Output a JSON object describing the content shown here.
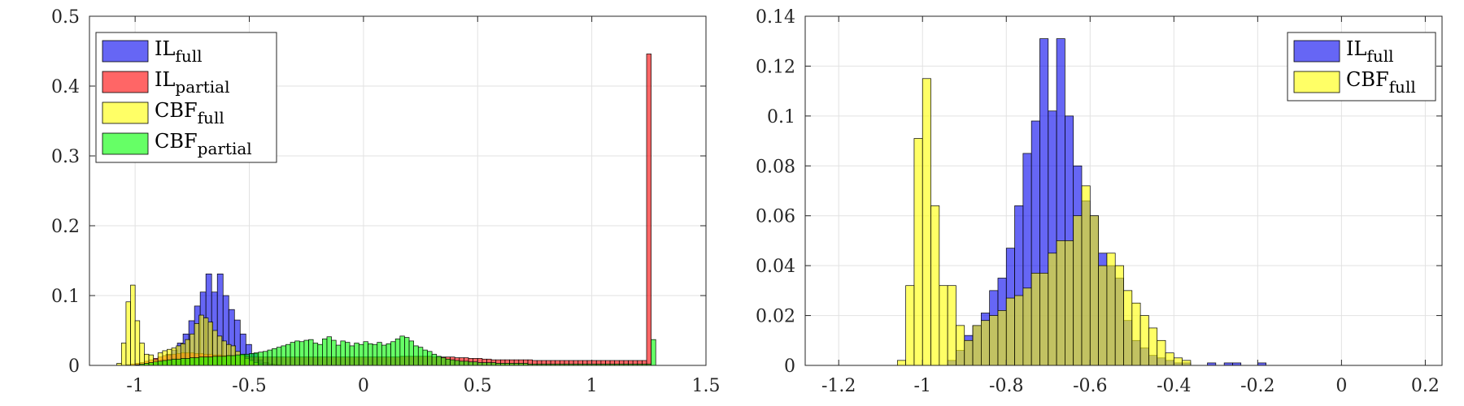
{
  "chart_data": [
    {
      "type": "histogram",
      "xlim": [
        -1.2,
        1.5
      ],
      "ylim": [
        0,
        0.5
      ],
      "xticks": [
        -1,
        -0.5,
        0,
        0.5,
        1,
        1.5
      ],
      "yticks": [
        0,
        0.1,
        0.2,
        0.3,
        0.4,
        0.5
      ],
      "xtick_labels": [
        "-1",
        "-0.5",
        "0",
        "0.5",
        "1",
        "1.5"
      ],
      "ytick_labels": [
        "0",
        "0.1",
        "0.2",
        "0.3",
        "0.4",
        "0.5"
      ],
      "grid": true,
      "legend_position": "top-left",
      "series": [
        {
          "name": "IL",
          "subscript": "full",
          "color": "#0000ee",
          "x0": -1.04,
          "bin_width": 0.025,
          "values": [
            0,
            0,
            0,
            0,
            0.001,
            0.003,
            0.008,
            0.016,
            0.022,
            0.032,
            0.045,
            0.064,
            0.085,
            0.105,
            0.131,
            0.105,
            0.131,
            0.1,
            0.08,
            0.065,
            0.045,
            0.03,
            0.017,
            0.008,
            0.004,
            0.002,
            0.001
          ]
        },
        {
          "name": "IL",
          "subscript": "partial",
          "color": "#ff0000",
          "x0": -1.04,
          "bin_width": 0.02,
          "values": [
            0.001,
            0.002,
            0.003,
            0.004,
            0.006,
            0.008,
            0.01,
            0.012,
            0.014,
            0.015,
            0.016,
            0.017,
            0.018,
            0.018,
            0.018,
            0.017,
            0.017,
            0.016,
            0.016,
            0.015,
            0.015,
            0.014,
            0.014,
            0.014,
            0.013,
            0.013,
            0.013,
            0.012,
            0.012,
            0.012,
            0.012,
            0.012,
            0.012,
            0.012,
            0.012,
            0.012,
            0.012,
            0.012,
            0.012,
            0.012,
            0.012,
            0.012,
            0.012,
            0.012,
            0.012,
            0.012,
            0.012,
            0.012,
            0.012,
            0.012,
            0.012,
            0.012,
            0.012,
            0.012,
            0.012,
            0.012,
            0.012,
            0.012,
            0.012,
            0.012,
            0.013,
            0.013,
            0.013,
            0.013,
            0.013,
            0.013,
            0.013,
            0.012,
            0.012,
            0.012,
            0.012,
            0.012,
            0.011,
            0.011,
            0.011,
            0.01,
            0.01,
            0.01,
            0.009,
            0.009,
            0.008,
            0.008,
            0.008,
            0.008,
            0.008,
            0.008,
            0.008,
            0.008,
            0.008,
            0.007,
            0.007,
            0.007,
            0.007,
            0.007,
            0.007,
            0.007,
            0.007,
            0.007,
            0.007,
            0.007,
            0.007,
            0.007,
            0.007,
            0.007,
            0.007,
            0.007,
            0.007,
            0.007,
            0.007,
            0.007,
            0.007,
            0.007,
            0.007,
            0.007,
            0.446
          ]
        },
        {
          "name": "CBF",
          "subscript": "full",
          "color": "#ffff00",
          "x0": -1.08,
          "bin_width": 0.02,
          "values": [
            0.003,
            0.032,
            0.091,
            0.115,
            0.064,
            0.032,
            0.016,
            0.015,
            0.008,
            0.018,
            0.021,
            0.023,
            0.025,
            0.028,
            0.031,
            0.037,
            0.045,
            0.06,
            0.072,
            0.068,
            0.062,
            0.05,
            0.042,
            0.035,
            0.03,
            0.028,
            0.02,
            0.015,
            0.01,
            0.007,
            0.004,
            0.002
          ]
        },
        {
          "name": "CBF",
          "subscript": "partial",
          "color": "#00ff00",
          "x0": -1.0,
          "bin_width": 0.02,
          "values": [
            0.001,
            0.002,
            0.003,
            0.004,
            0.005,
            0.006,
            0.007,
            0.008,
            0.009,
            0.009,
            0.01,
            0.01,
            0.011,
            0.011,
            0.012,
            0.012,
            0.012,
            0.013,
            0.013,
            0.013,
            0.014,
            0.014,
            0.015,
            0.016,
            0.016,
            0.017,
            0.018,
            0.019,
            0.02,
            0.022,
            0.024,
            0.026,
            0.028,
            0.03,
            0.033,
            0.035,
            0.034,
            0.036,
            0.037,
            0.032,
            0.03,
            0.038,
            0.041,
            0.036,
            0.029,
            0.035,
            0.033,
            0.028,
            0.032,
            0.03,
            0.034,
            0.031,
            0.03,
            0.033,
            0.029,
            0.031,
            0.034,
            0.038,
            0.042,
            0.04,
            0.035,
            0.028,
            0.026,
            0.022,
            0.02,
            0.016,
            0.013,
            0.011,
            0.009,
            0.008,
            0.007,
            0.006,
            0.006,
            0.005,
            0.005,
            0.004,
            0.004,
            0.004,
            0.004,
            0.003,
            0.003,
            0.003,
            0.003,
            0.003,
            0.003,
            0.003,
            0.002,
            0.002,
            0.002,
            0.002,
            0.002,
            0.002,
            0.002,
            0.002,
            0.002,
            0.002,
            0.002,
            0.002,
            0.002,
            0.002,
            0.002,
            0.002,
            0.002,
            0.002,
            0.002,
            0.002,
            0.002,
            0.002,
            0.002,
            0.002,
            0.002,
            0.002,
            0.002,
            0.037
          ]
        }
      ]
    },
    {
      "type": "histogram",
      "xlim": [
        -1.28,
        0.24
      ],
      "ylim": [
        0,
        0.14
      ],
      "xticks": [
        -1.2,
        -1,
        -0.8,
        -0.6,
        -0.4,
        -0.2,
        0,
        0.2
      ],
      "yticks": [
        0,
        0.02,
        0.04,
        0.06,
        0.08,
        0.1,
        0.12,
        0.14
      ],
      "xtick_labels": [
        "-1.2",
        "-1",
        "-0.8",
        "-0.6",
        "-0.4",
        "-0.2",
        "0",
        "0.2"
      ],
      "ytick_labels": [
        "0",
        "0.02",
        "0.04",
        "0.06",
        "0.08",
        "0.1",
        "0.12",
        "0.14"
      ],
      "grid": true,
      "legend_position": "top-right",
      "series": [
        {
          "name": "IL",
          "subscript": "full",
          "color": "#0000ee",
          "x0": -1.04,
          "bin_width": 0.02,
          "values": [
            0,
            0,
            0,
            0,
            0,
            0.002,
            0.006,
            0.012,
            0.016,
            0.021,
            0.03,
            0.035,
            0.047,
            0.064,
            0.085,
            0.098,
            0.131,
            0.102,
            0.131,
            0.1,
            0.08,
            0.066,
            0.06,
            0.045,
            0.04,
            0.035,
            0.018,
            0.01,
            0.007,
            0.004,
            0.003,
            0.002,
            0.001,
            0.001,
            0,
            0,
            0.001,
            0,
            0.001,
            0.001,
            0,
            0,
            0.001
          ]
        },
        {
          "name": "CBF",
          "subscript": "full",
          "color": "#ffff00",
          "x0": -1.06,
          "bin_width": 0.02,
          "values": [
            0.002,
            0.032,
            0.091,
            0.115,
            0.064,
            0.032,
            0.032,
            0.016,
            0.01,
            0.016,
            0.018,
            0.02,
            0.022,
            0.027,
            0.028,
            0.031,
            0.037,
            0.037,
            0.045,
            0.05,
            0.05,
            0.06,
            0.072,
            0.06,
            0.04,
            0.045,
            0.04,
            0.03,
            0.025,
            0.02,
            0.015,
            0.01,
            0.005,
            0.003,
            0.002
          ]
        }
      ]
    }
  ]
}
